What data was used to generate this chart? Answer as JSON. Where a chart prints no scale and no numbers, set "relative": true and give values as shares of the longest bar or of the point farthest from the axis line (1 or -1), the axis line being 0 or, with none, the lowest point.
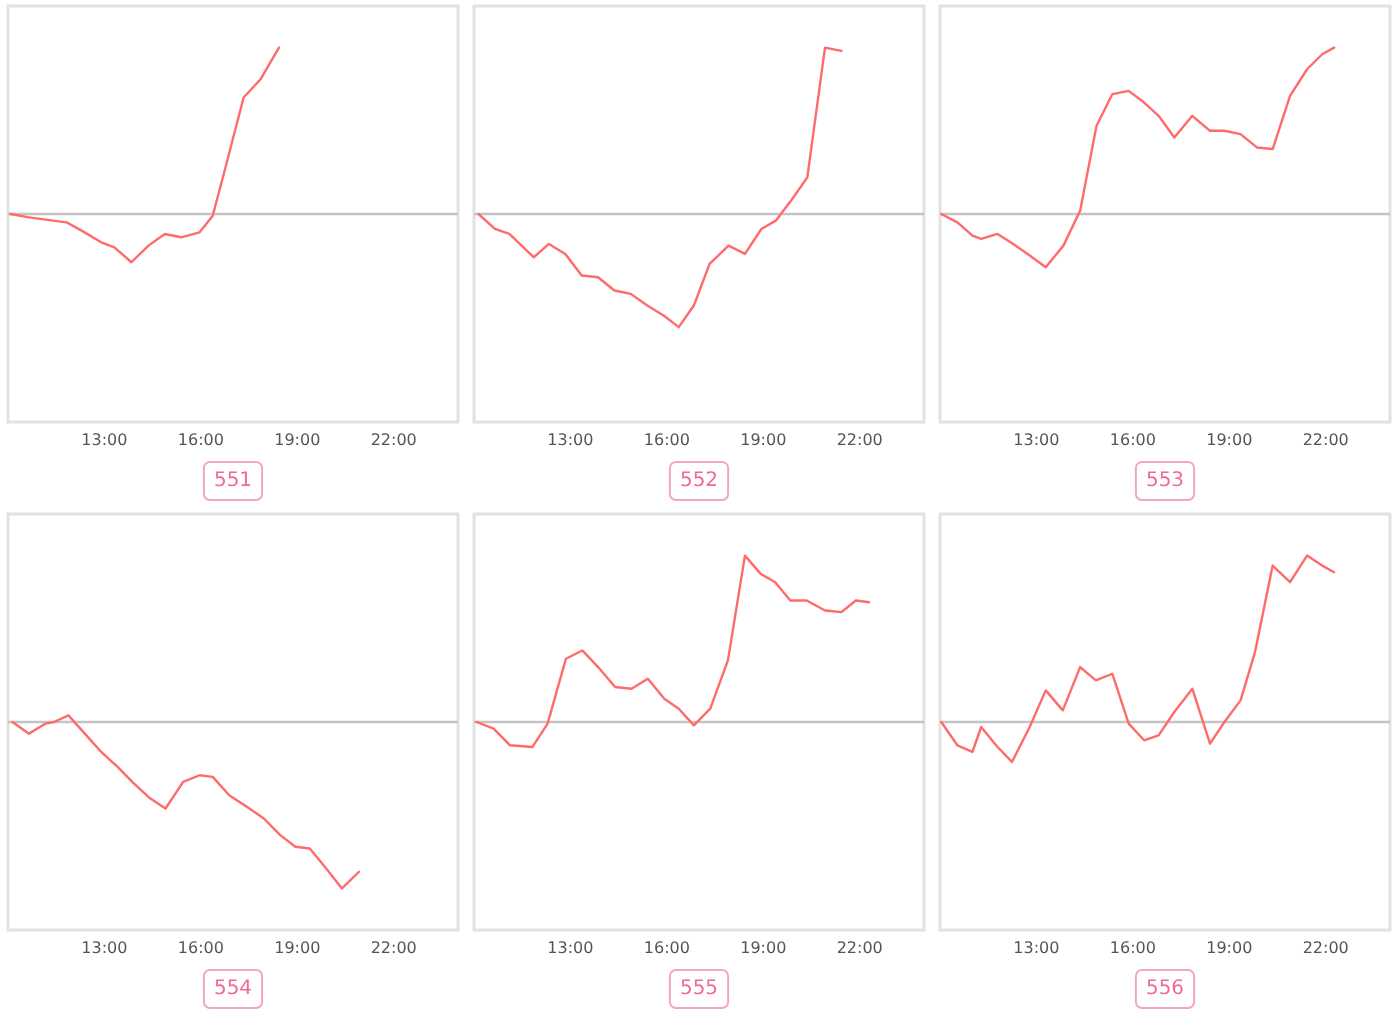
{
  "chart_data": [
    {
      "type": "line",
      "title": "551",
      "relative": true,
      "xlim": [
        10,
        24
      ],
      "xticks": [
        {
          "value": 13,
          "label": "13:00"
        },
        {
          "value": 16,
          "label": "16:00"
        },
        {
          "value": 19,
          "label": "19:00"
        },
        {
          "value": 22,
          "label": "22:00"
        }
      ],
      "x": [
        10.08,
        10.65,
        11.82,
        12.29,
        12.9,
        13.31,
        13.84,
        14.37,
        14.88,
        15.39,
        15.96,
        16.37,
        16.78,
        17.33,
        17.86,
        18.43
      ],
      "series": [
        {
          "color": "#ff6b6b",
          "values": [
            0,
            -0.02,
            -0.05,
            -0.1,
            -0.17,
            -0.2,
            -0.29,
            -0.19,
            -0.12,
            -0.14,
            -0.11,
            -0.01,
            0.29,
            0.7,
            0.81,
            1
          ]
        }
      ]
    },
    {
      "type": "line",
      "title": "552",
      "relative": true,
      "xlim": [
        10,
        24
      ],
      "xticks": [
        {
          "value": 13,
          "label": "13:00"
        },
        {
          "value": 16,
          "label": "16:00"
        },
        {
          "value": 19,
          "label": "19:00"
        },
        {
          "value": 22,
          "label": "22:00"
        }
      ],
      "x": [
        10.14,
        10.65,
        11.1,
        11.86,
        12.33,
        12.84,
        13.35,
        13.86,
        14.37,
        14.88,
        15.39,
        15.9,
        16.37,
        16.84,
        17.33,
        17.92,
        18.43,
        18.94,
        19.39,
        19.9,
        20.37,
        20.92,
        21.43
      ],
      "series": [
        {
          "color": "#ff6b6b",
          "values": [
            0,
            -0.09,
            -0.12,
            -0.26,
            -0.18,
            -0.24,
            -0.37,
            -0.38,
            -0.46,
            -0.48,
            -0.55,
            -0.61,
            -0.68,
            -0.55,
            -0.3,
            -0.19,
            -0.24,
            -0.09,
            -0.04,
            0.09,
            0.22,
            1,
            0.98
          ]
        }
      ]
    },
    {
      "type": "line",
      "title": "553",
      "relative": true,
      "xlim": [
        10,
        24
      ],
      "xticks": [
        {
          "value": 13,
          "label": "13:00"
        },
        {
          "value": 16,
          "label": "16:00"
        },
        {
          "value": 19,
          "label": "19:00"
        },
        {
          "value": 22,
          "label": "22:00"
        }
      ],
      "x": [
        10.04,
        10.54,
        11.01,
        11.28,
        11.79,
        12.28,
        12.79,
        13.29,
        13.84,
        14.36,
        14.87,
        15.36,
        15.87,
        16.35,
        16.8,
        17.29,
        17.85,
        18.4,
        18.85,
        19.35,
        19.86,
        20.35,
        20.89,
        21.42,
        21.89,
        22.26
      ],
      "series": [
        {
          "color": "#ff6b6b",
          "values": [
            0,
            -0.05,
            -0.13,
            -0.15,
            -0.12,
            -0.18,
            -0.25,
            -0.32,
            -0.19,
            0.02,
            0.53,
            0.72,
            0.74,
            0.67,
            0.59,
            0.46,
            0.59,
            0.5,
            0.5,
            0.48,
            0.4,
            0.39,
            0.71,
            0.87,
            0.96,
            1
          ]
        }
      ]
    },
    {
      "type": "line",
      "title": "554",
      "relative": true,
      "xlim": [
        10,
        24
      ],
      "xticks": [
        {
          "value": 13,
          "label": "13:00"
        },
        {
          "value": 16,
          "label": "16:00"
        },
        {
          "value": 19,
          "label": "19:00"
        },
        {
          "value": 22,
          "label": "22:00"
        }
      ],
      "x": [
        10.14,
        10.65,
        11.16,
        11.43,
        11.88,
        12.39,
        12.9,
        13.41,
        13.92,
        14.43,
        14.9,
        15.45,
        15.96,
        16.37,
        16.88,
        17.43,
        17.96,
        18.47,
        18.94,
        19.39,
        19.9,
        20.39,
        20.92
      ],
      "series": [
        {
          "color": "#ff6b6b",
          "values": [
            0,
            -0.07,
            -0.01,
            0,
            0.04,
            -0.07,
            -0.18,
            -0.27,
            -0.37,
            -0.46,
            -0.52,
            -0.36,
            -0.32,
            -0.33,
            -0.44,
            -0.51,
            -0.58,
            -0.68,
            -0.75,
            -0.76,
            -0.88,
            -1,
            -0.9
          ]
        }
      ]
    },
    {
      "type": "line",
      "title": "555",
      "relative": true,
      "xlim": [
        10,
        24
      ],
      "xticks": [
        {
          "value": 13,
          "label": "13:00"
        },
        {
          "value": 16,
          "label": "16:00"
        },
        {
          "value": 19,
          "label": "19:00"
        },
        {
          "value": 22,
          "label": "22:00"
        }
      ],
      "x": [
        10.08,
        10.61,
        11.12,
        11.82,
        12.29,
        12.86,
        13.37,
        13.86,
        14.39,
        14.9,
        15.41,
        15.92,
        16.37,
        16.84,
        17.35,
        17.9,
        18.43,
        18.92,
        19.37,
        19.84,
        20.35,
        20.92,
        21.43,
        21.88,
        22.29
      ],
      "series": [
        {
          "color": "#ff6b6b",
          "values": [
            0,
            -0.04,
            -0.14,
            -0.15,
            -0.01,
            0.38,
            0.43,
            0.33,
            0.21,
            0.2,
            0.26,
            0.14,
            0.08,
            -0.02,
            0.08,
            0.37,
            1,
            0.89,
            0.84,
            0.73,
            0.73,
            0.67,
            0.66,
            0.73,
            0.72
          ]
        }
      ]
    },
    {
      "type": "line",
      "title": "556",
      "relative": true,
      "xlim": [
        10,
        24
      ],
      "xticks": [
        {
          "value": 13,
          "label": "13:00"
        },
        {
          "value": 16,
          "label": "16:00"
        },
        {
          "value": 19,
          "label": "19:00"
        },
        {
          "value": 22,
          "label": "22:00"
        }
      ],
      "x": [
        10.04,
        10.54,
        11.01,
        11.28,
        11.79,
        12.24,
        12.79,
        13.29,
        13.82,
        14.36,
        14.85,
        15.36,
        15.87,
        16.35,
        16.8,
        17.29,
        17.85,
        18.4,
        18.85,
        19.35,
        19.8,
        20.35,
        20.89,
        21.42,
        21.89,
        22.26
      ],
      "series": [
        {
          "color": "#ff6b6b",
          "values": [
            0,
            -0.14,
            -0.18,
            -0.03,
            -0.15,
            -0.24,
            -0.03,
            0.19,
            0.07,
            0.33,
            0.25,
            0.29,
            -0.01,
            -0.11,
            -0.08,
            0.06,
            0.2,
            -0.13,
            0,
            0.13,
            0.42,
            0.94,
            0.84,
            1,
            0.94,
            0.9
          ]
        }
      ]
    }
  ]
}
